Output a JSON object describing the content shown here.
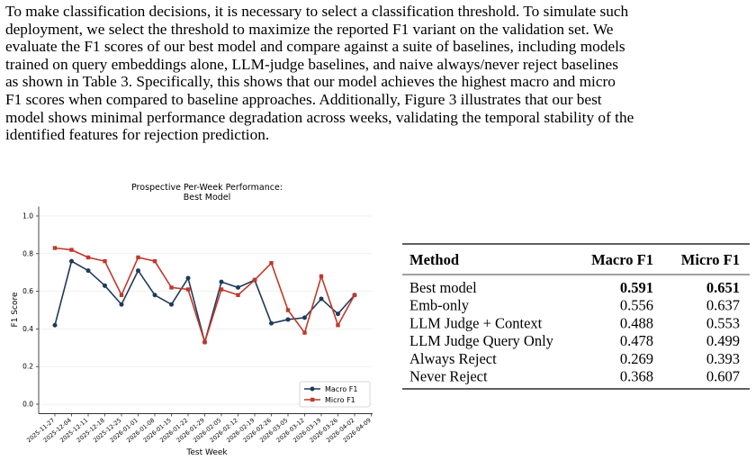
{
  "paragraph_lines": [
    "To make classification decisions, it is necessary to select a classification threshold. To simulate such",
    "deployment, we select the threshold to maximize the reported F1 variant on the validation set. We",
    "evaluate the F1 scores of our best model and compare against a suite of baselines, including models",
    "trained on query embeddings alone, LLM-judge baselines, and naive always/never reject baselines",
    "as shown in Table 3. Specifically, this shows that our model achieves the highest macro and micro",
    "F1 scores when compared to baseline approaches. Additionally, Figure 3 illustrates that our best",
    "model shows minimal performance degradation across weeks, validating the temporal stability of the",
    "identified features for rejection prediction."
  ],
  "chart_data": {
    "type": "line",
    "title": "Prospective Per-Week Performance:",
    "subtitle": "Best Model",
    "x_label": "Test Week",
    "y_label": "F1 Score",
    "categories": [
      "2025-11-27",
      "2025-12-04",
      "2025-12-11",
      "2025-12-18",
      "2025-12-25",
      "2026-01-01",
      "2026-01-08",
      "2026-01-15",
      "2026-01-22",
      "2026-01-29",
      "2026-02-05",
      "2026-02-12",
      "2026-02-19",
      "2026-02-26",
      "2026-03-05",
      "2026-03-12",
      "2026-03-19",
      "2026-03-26",
      "2026-04-02",
      "2026-04-09"
    ],
    "series": [
      {
        "name": "Macro F1",
        "color": "#1f3a5a",
        "marker": "circle",
        "values": [
          0.42,
          0.76,
          0.71,
          0.63,
          0.53,
          0.71,
          0.58,
          0.53,
          0.67,
          0.33,
          0.65,
          0.62,
          0.66,
          0.43,
          0.45,
          0.46,
          0.56,
          0.48,
          0.58,
          null
        ]
      },
      {
        "name": "Micro F1",
        "color": "#c0392b",
        "marker": "square",
        "values": [
          0.83,
          0.82,
          0.78,
          0.76,
          0.58,
          0.78,
          0.76,
          0.62,
          0.61,
          0.33,
          0.61,
          0.58,
          0.66,
          0.75,
          0.5,
          0.38,
          0.68,
          0.42,
          0.58,
          null
        ]
      }
    ],
    "ylim": [
      -0.05,
      1.05
    ],
    "yticks": [
      {
        "value": 0,
        "label": "0.0"
      },
      0.2,
      0.4,
      0.6,
      0.8,
      {
        "value": 1,
        "label": "1.0"
      }
    ],
    "grid": true,
    "legend": "lower right"
  },
  "table": {
    "header": [
      "Method",
      "Macro F1",
      "Micro F1"
    ],
    "rows": [
      [
        "Best model",
        "0.591",
        "0.651"
      ],
      [
        "Emb-only",
        "0.556",
        "0.637"
      ],
      [
        "LLM Judge + Context",
        "0.488",
        "0.553"
      ],
      [
        "LLM Judge Query Only",
        "0.478",
        "0.499"
      ],
      [
        "Always Reject",
        "0.269",
        "0.393"
      ],
      [
        "Never Reject",
        "0.368",
        "0.607"
      ]
    ],
    "bold_row": 0
  }
}
